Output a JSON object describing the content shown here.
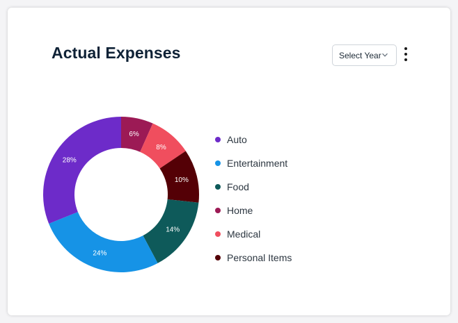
{
  "card": {
    "title": "Actual Expenses",
    "year_select": {
      "label": "Select Year",
      "icon": "chevron-down-icon"
    },
    "menu_icon": "kebab-icon"
  },
  "chart_data": {
    "type": "pie",
    "donut": true,
    "categories": [
      "Home",
      "Medical",
      "Personal Items",
      "Food",
      "Entertainment",
      "Auto"
    ],
    "values": [
      6,
      8,
      10,
      14,
      24,
      28
    ],
    "value_labels": [
      "6%",
      "8%",
      "10%",
      "14%",
      "24%",
      "28%"
    ],
    "colors": [
      "#9c1a55",
      "#f04e5e",
      "#540006",
      "#0e5a5a",
      "#1693e6",
      "#6d2bc9"
    ],
    "legend": {
      "placement": "right",
      "entries": [
        {
          "name": "Auto",
          "color": "#6d2bc9"
        },
        {
          "name": "Entertainment",
          "color": "#1693e6"
        },
        {
          "name": "Food",
          "color": "#0e5a5a"
        },
        {
          "name": "Home",
          "color": "#9c1a55"
        },
        {
          "name": "Medical",
          "color": "#f04e5e"
        },
        {
          "name": "Personal Items",
          "color": "#540006"
        }
      ]
    }
  }
}
